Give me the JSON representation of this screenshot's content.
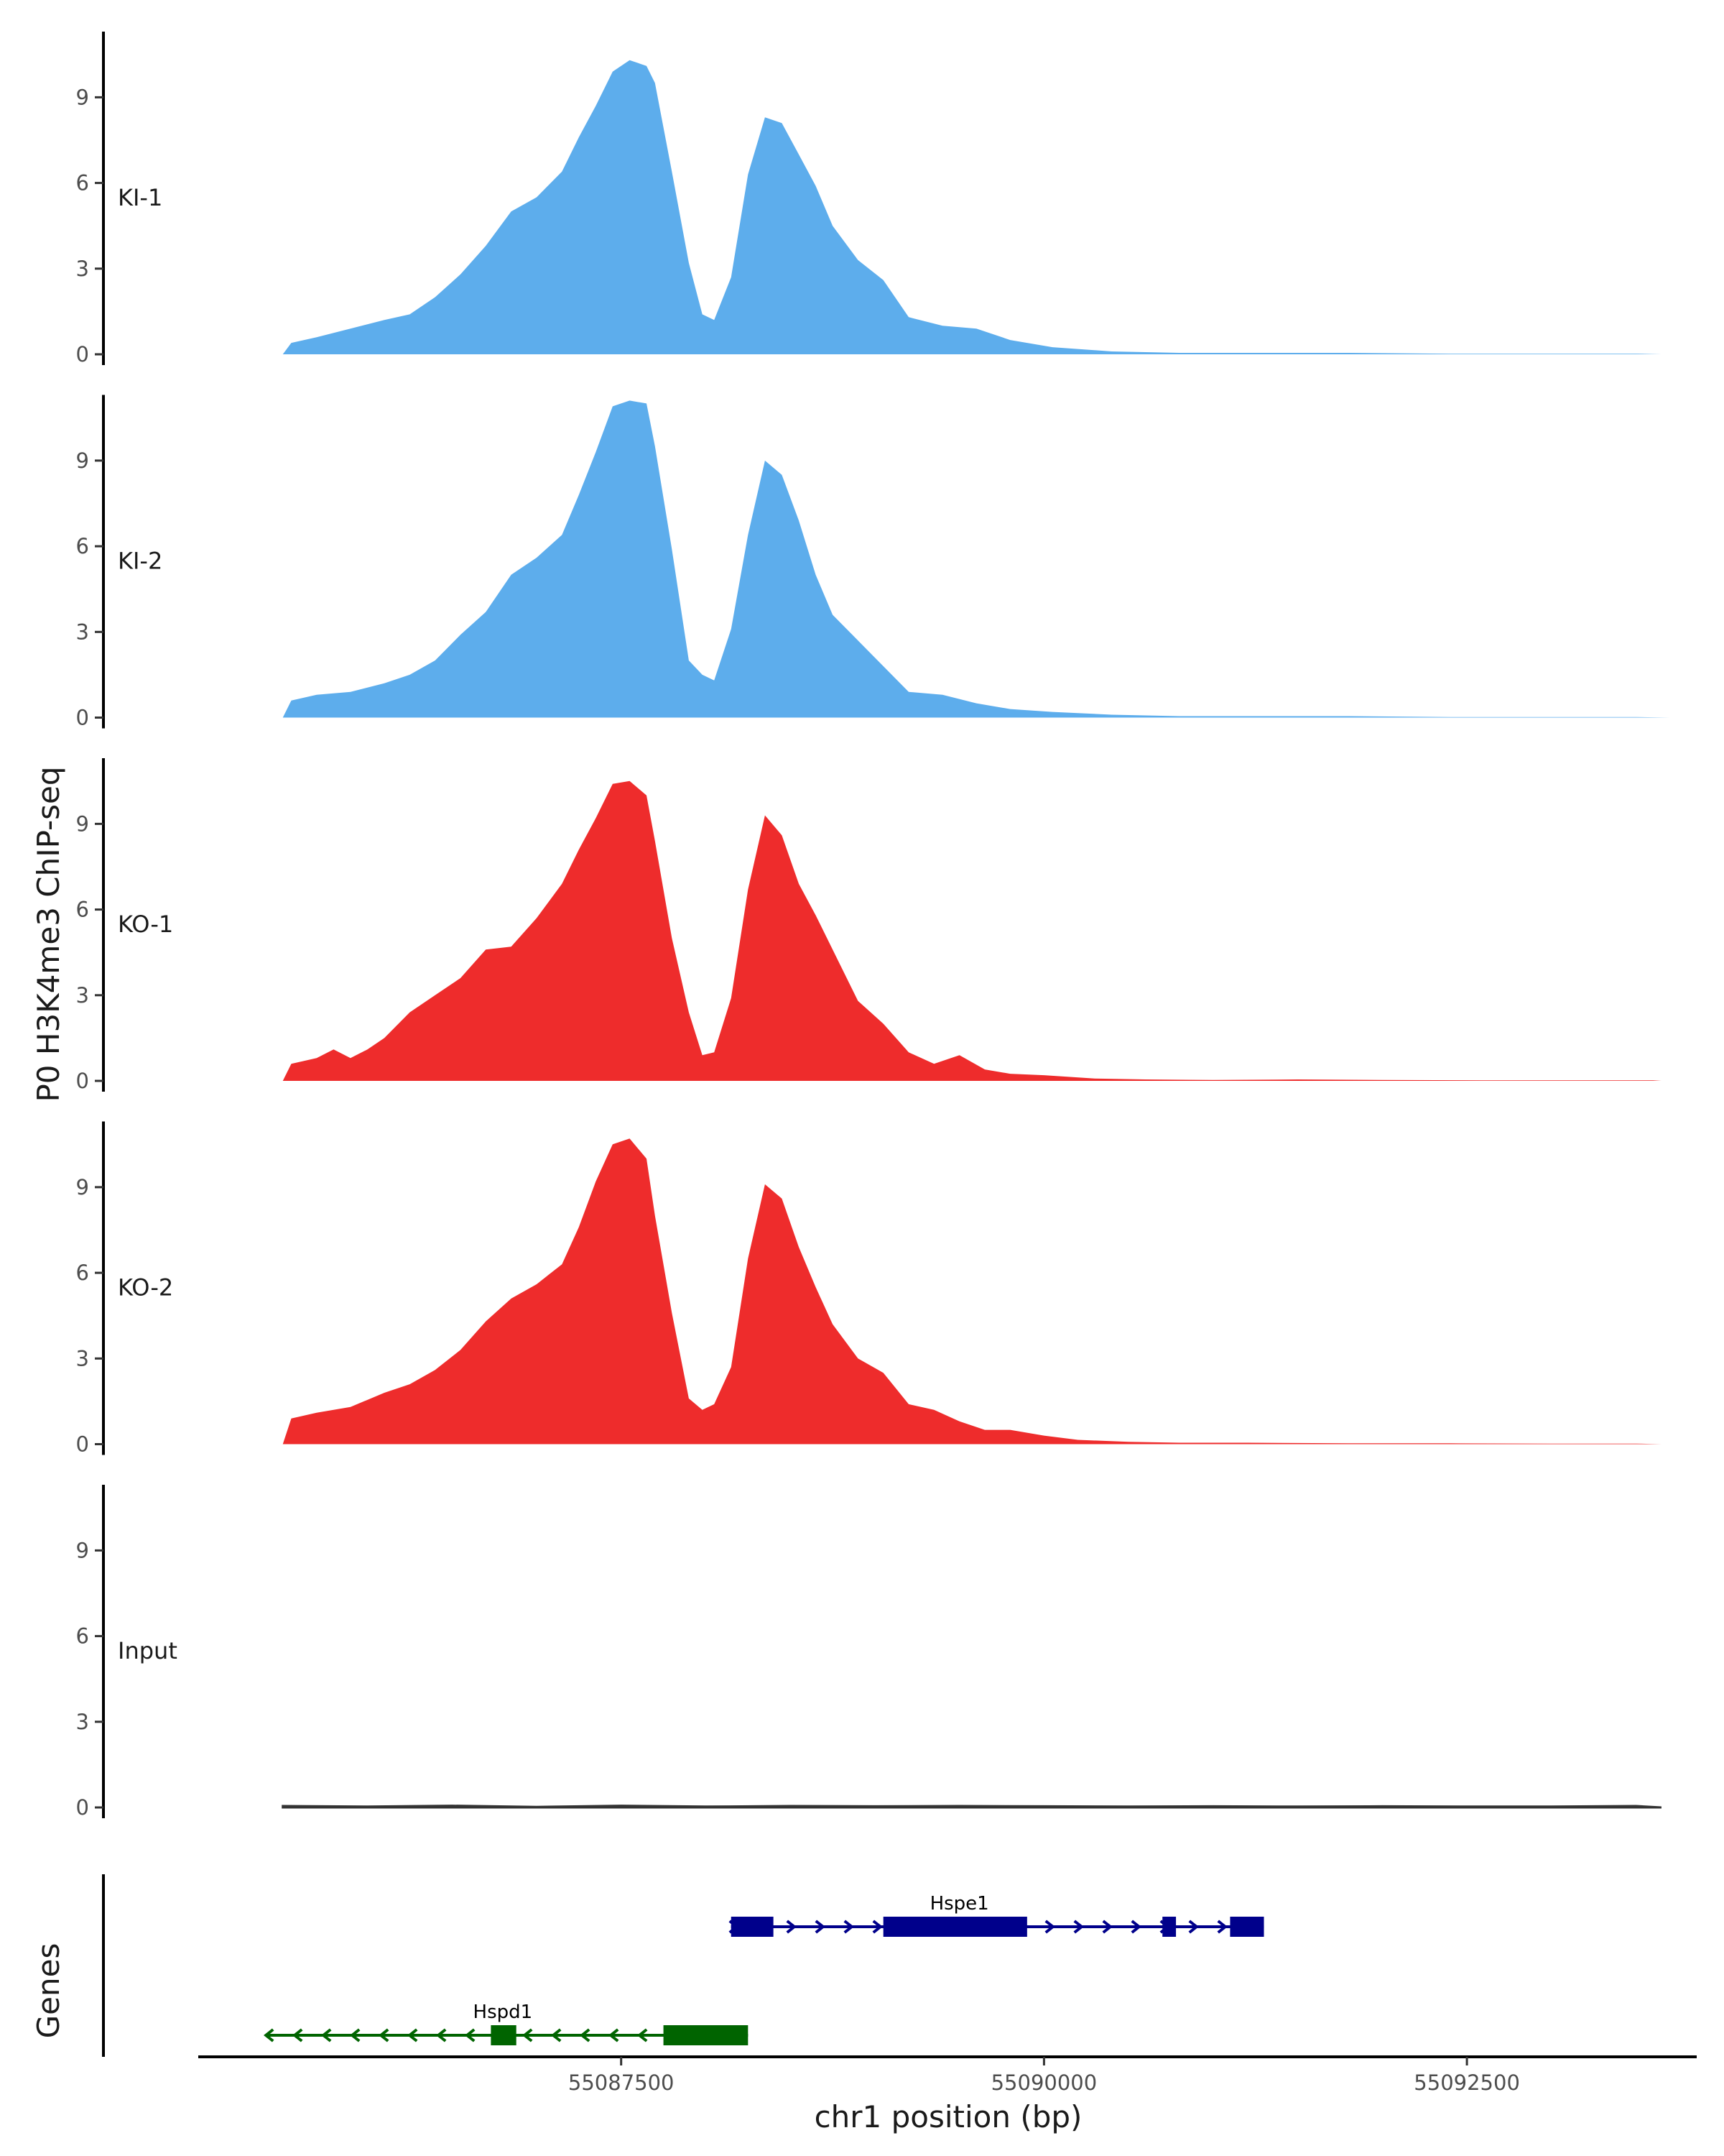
{
  "chart_data": {
    "type": "area",
    "ylabel": "P0 H3K4me3 ChIP-seq",
    "xlabel": "chr1 position (bp)",
    "ylim": [
      0,
      11.3
    ],
    "yticks": [
      0,
      3,
      6,
      9
    ],
    "xlim": [
      55085000,
      55093850
    ],
    "xticks": [
      {
        "value": 55087500,
        "label": "55087500"
      },
      {
        "value": 55090000,
        "label": "55090000"
      },
      {
        "value": 55092500,
        "label": "55092500"
      }
    ],
    "grid": false,
    "legend": "none",
    "tracks": [
      {
        "name": "KI-1",
        "color": "#5DADEC",
        "x": [
          55085500,
          55085550,
          55085700,
          55085900,
          55086100,
          55086250,
          55086400,
          55086550,
          55086700,
          55086850,
          55087000,
          55087150,
          55087250,
          55087350,
          55087450,
          55087550,
          55087650,
          55087700,
          55087800,
          55087900,
          55087980,
          55088050,
          55088150,
          55088250,
          55088350,
          55088450,
          55088550,
          55088650,
          55088750,
          55088900,
          55089050,
          55089200,
          55089400,
          55089600,
          55089800,
          55090050,
          55090400,
          55090800,
          55091200,
          55091800,
          55092400,
          55093000,
          55093500,
          55093650
        ],
        "values": [
          0.0,
          0.4,
          0.6,
          0.9,
          1.2,
          1.4,
          2.0,
          2.8,
          3.8,
          5.0,
          5.5,
          6.4,
          7.6,
          8.7,
          9.9,
          10.3,
          10.1,
          9.5,
          6.4,
          3.2,
          1.4,
          1.2,
          2.7,
          6.3,
          8.3,
          8.1,
          7.0,
          5.9,
          4.5,
          3.3,
          2.6,
          1.3,
          1.0,
          0.9,
          0.5,
          0.25,
          0.1,
          0.05,
          0.05,
          0.05,
          0.02,
          0.02,
          0.02,
          0.0
        ]
      },
      {
        "name": "KI-2",
        "color": "#5DADEC",
        "x": [
          55085500,
          55085550,
          55085700,
          55085900,
          55086100,
          55086250,
          55086400,
          55086550,
          55086700,
          55086850,
          55087000,
          55087150,
          55087250,
          55087350,
          55087450,
          55087550,
          55087650,
          55087700,
          55087800,
          55087900,
          55087980,
          55088050,
          55088150,
          55088250,
          55088350,
          55088450,
          55088550,
          55088650,
          55088750,
          55088900,
          55089050,
          55089200,
          55089400,
          55089600,
          55089800,
          55090050,
          55090400,
          55090800,
          55091200,
          55091800,
          55092400,
          55093000,
          55093500,
          55093700
        ],
        "values": [
          0.0,
          0.6,
          0.8,
          0.9,
          1.2,
          1.5,
          2.0,
          2.9,
          3.7,
          5.0,
          5.6,
          6.4,
          7.8,
          9.3,
          10.9,
          11.1,
          11.0,
          9.5,
          5.9,
          2.0,
          1.5,
          1.3,
          3.1,
          6.4,
          9.0,
          8.5,
          6.9,
          5.0,
          3.6,
          2.7,
          1.8,
          0.9,
          0.8,
          0.5,
          0.3,
          0.2,
          0.1,
          0.05,
          0.05,
          0.05,
          0.02,
          0.02,
          0.02,
          0.0
        ]
      },
      {
        "name": "KO-1",
        "color": "#EE2C2C",
        "x": [
          55085500,
          55085550,
          55085700,
          55085800,
          55085900,
          55086000,
          55086100,
          55086250,
          55086400,
          55086550,
          55086700,
          55086850,
          55087000,
          55087150,
          55087250,
          55087350,
          55087450,
          55087550,
          55087650,
          55087700,
          55087800,
          55087900,
          55087980,
          55088050,
          55088150,
          55088250,
          55088350,
          55088450,
          55088550,
          55088650,
          55088750,
          55088900,
          55089050,
          55089200,
          55089350,
          55089500,
          55089650,
          55089800,
          55090000,
          55090300,
          55090600,
          55091000,
          55091500,
          55092000,
          55092600,
          55093200,
          55093600,
          55093650
        ],
        "values": [
          0.0,
          0.6,
          0.8,
          1.1,
          0.8,
          1.1,
          1.5,
          2.4,
          3.0,
          3.6,
          4.6,
          4.7,
          5.7,
          6.9,
          8.1,
          9.2,
          10.4,
          10.5,
          10.0,
          8.4,
          5.0,
          2.4,
          0.9,
          1.0,
          2.9,
          6.7,
          9.3,
          8.6,
          6.9,
          5.8,
          4.6,
          2.8,
          2.0,
          1.0,
          0.6,
          0.9,
          0.4,
          0.25,
          0.2,
          0.08,
          0.05,
          0.03,
          0.05,
          0.03,
          0.02,
          0.02,
          0.02,
          0.0
        ]
      },
      {
        "name": "KO-2",
        "color": "#EE2C2C",
        "x": [
          55085500,
          55085550,
          55085700,
          55085900,
          55086100,
          55086250,
          55086400,
          55086550,
          55086700,
          55086850,
          55087000,
          55087150,
          55087250,
          55087350,
          55087450,
          55087550,
          55087650,
          55087700,
          55087800,
          55087900,
          55087980,
          55088050,
          55088150,
          55088250,
          55088350,
          55088450,
          55088550,
          55088650,
          55088750,
          55088900,
          55089050,
          55089200,
          55089350,
          55089500,
          55089650,
          55089800,
          55090000,
          55090200,
          55090500,
          55090800,
          55091200,
          55091800,
          55092400,
          55093000,
          55093500,
          55093650
        ],
        "values": [
          0.0,
          0.9,
          1.1,
          1.3,
          1.8,
          2.1,
          2.6,
          3.3,
          4.3,
          5.1,
          5.6,
          6.3,
          7.6,
          9.2,
          10.5,
          10.7,
          10.0,
          8.0,
          4.6,
          1.6,
          1.2,
          1.4,
          2.7,
          6.5,
          9.1,
          8.6,
          6.9,
          5.5,
          4.2,
          3.0,
          2.5,
          1.4,
          1.2,
          0.8,
          0.5,
          0.5,
          0.3,
          0.15,
          0.08,
          0.05,
          0.05,
          0.03,
          0.03,
          0.02,
          0.02,
          0.0
        ]
      },
      {
        "name": "Input",
        "color": "#333333",
        "x": [
          55085500,
          55086000,
          55086500,
          55087000,
          55087500,
          55088000,
          55088500,
          55089000,
          55089500,
          55090000,
          55090500,
          55091000,
          55091500,
          55092000,
          55092500,
          55093000,
          55093500,
          55093650
        ],
        "values": [
          0.05,
          0.03,
          0.06,
          0.02,
          0.06,
          0.03,
          0.05,
          0.04,
          0.05,
          0.04,
          0.03,
          0.04,
          0.03,
          0.04,
          0.03,
          0.03,
          0.05,
          0.0
        ]
      }
    ],
    "genes_panel": {
      "ylabel": "Genes",
      "genes": [
        {
          "name": "Hspe1",
          "strand": "+",
          "color": "#00008B",
          "start": 55088150,
          "end": 55091300,
          "exons": [
            [
              55088150,
              55088400
            ],
            [
              55089050,
              55089900
            ],
            [
              55090700,
              55090780
            ],
            [
              55091100,
              55091300
            ]
          ]
        },
        {
          "name": "Hspd1",
          "strand": "-",
          "color": "#006400",
          "start": 55085400,
          "end": 55088250,
          "exons": [
            [
              55086730,
              55086880
            ],
            [
              55087750,
              55088250
            ]
          ]
        }
      ]
    }
  }
}
